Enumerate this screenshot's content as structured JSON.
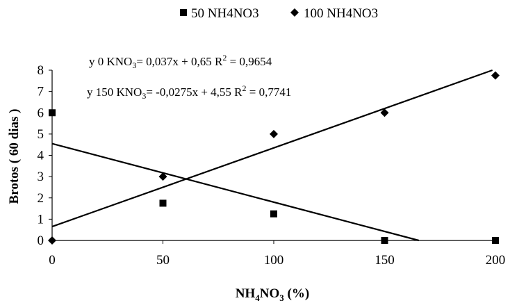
{
  "chart_data": {
    "type": "scatter",
    "xlabel_main": "NH",
    "xlabel_sub1": "4",
    "xlabel_mid": "NO",
    "xlabel_sub2": "3",
    "xlabel_tail": " (%)",
    "ylabel": "Brotos ( 60 dias )",
    "xlim": [
      0,
      200
    ],
    "ylim": [
      0,
      8
    ],
    "x_ticks": [
      "0",
      "50",
      "100",
      "150",
      "200"
    ],
    "y_ticks": [
      "0",
      "1",
      "2",
      "3",
      "4",
      "5",
      "6",
      "7",
      "8"
    ],
    "legend_position": "top",
    "grid": false,
    "series": [
      {
        "name": "50 NH4NO3",
        "marker": "square",
        "x": [
          0,
          50,
          100,
          150,
          200
        ],
        "y": [
          6.0,
          1.75,
          1.25,
          0.0,
          0.0
        ]
      },
      {
        "name": "100 NH4NO3",
        "marker": "diamond",
        "x": [
          0,
          50,
          100,
          150,
          200
        ],
        "y": [
          0.0,
          3.0,
          5.0,
          6.0,
          7.75
        ]
      }
    ],
    "trendlines": [
      {
        "slope": 0.037,
        "intercept": 0.65
      },
      {
        "slope": -0.0275,
        "intercept": 4.55
      }
    ],
    "annotations": [
      {
        "pre": "y 0 KNO",
        "sub": "3",
        "eq": "= 0,037x + 0,65  R",
        "sup": "2",
        "post": " = 0,9654"
      },
      {
        "pre": "y 150 KNO",
        "sub": "3",
        "eq": "= -0,0275x + 4,55  R",
        "sup": "2",
        "post": " = 0,7741"
      }
    ],
    "colors": {
      "marks": "#000000",
      "axes": "#000000"
    }
  }
}
